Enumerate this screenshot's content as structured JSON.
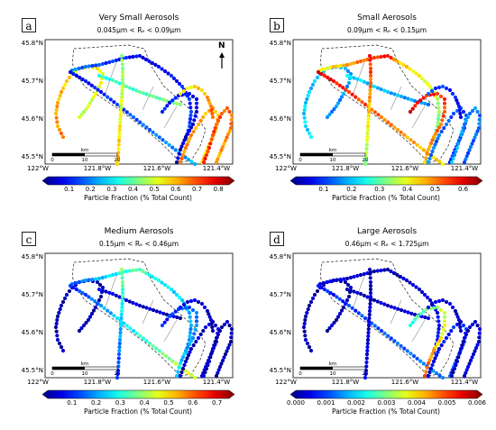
{
  "panels": [
    {
      "letter": "a",
      "title": "Very Small Aerosols",
      "subtitle": "0.045μm < Rₑ < 0.09μm",
      "colorbar_ticks": [
        "0.1",
        "0.2",
        "0.3",
        "0.4",
        "0.5",
        "0.6",
        "0.7",
        "0.8"
      ],
      "colorbar_label": "Particle Fraction (% Total Count)",
      "show_north": true,
      "scheme": "a"
    },
    {
      "letter": "b",
      "title": "Small Aerosols",
      "subtitle": "0.09μm < Rₑ < 0.15μm",
      "colorbar_ticks": [
        "0.1",
        "0.2",
        "0.3",
        "0.4",
        "0.5",
        "0.6"
      ],
      "colorbar_label": "Particle Fraction (% Total Count)",
      "show_north": false,
      "scheme": "b"
    },
    {
      "letter": "c",
      "title": "Medium Aerosols",
      "subtitle": "0.15μm < Rₑ < 0.46μm",
      "colorbar_ticks": [
        "0.1",
        "0.2",
        "0.3",
        "0.4",
        "0.5",
        "0.6",
        "0.7"
      ],
      "colorbar_label": "Particle Fraction (% Total Count)",
      "show_north": false,
      "scheme": "c"
    },
    {
      "letter": "d",
      "title": "Large Aerosols",
      "subtitle": "0.46μm < Rₑ < 1.725μm",
      "colorbar_ticks": [
        "0.000",
        "0.001",
        "0.002",
        "0.003",
        "0.004",
        "0.005",
        "0.006"
      ],
      "colorbar_label": "Particle Fraction (% Total Count)",
      "show_north": false,
      "scheme": "d"
    }
  ],
  "lat_ticks": [
    "45.8°N",
    "45.7°N",
    "45.6°N",
    "45.5°N"
  ],
  "lon_ticks": [
    "122°W",
    "121.8°W",
    "121.6°W",
    "121.4°W"
  ],
  "scalebar": {
    "unit": "km",
    "ticks": [
      "0",
      "10",
      "20"
    ]
  },
  "north_label": "N",
  "colormap": "jet"
}
